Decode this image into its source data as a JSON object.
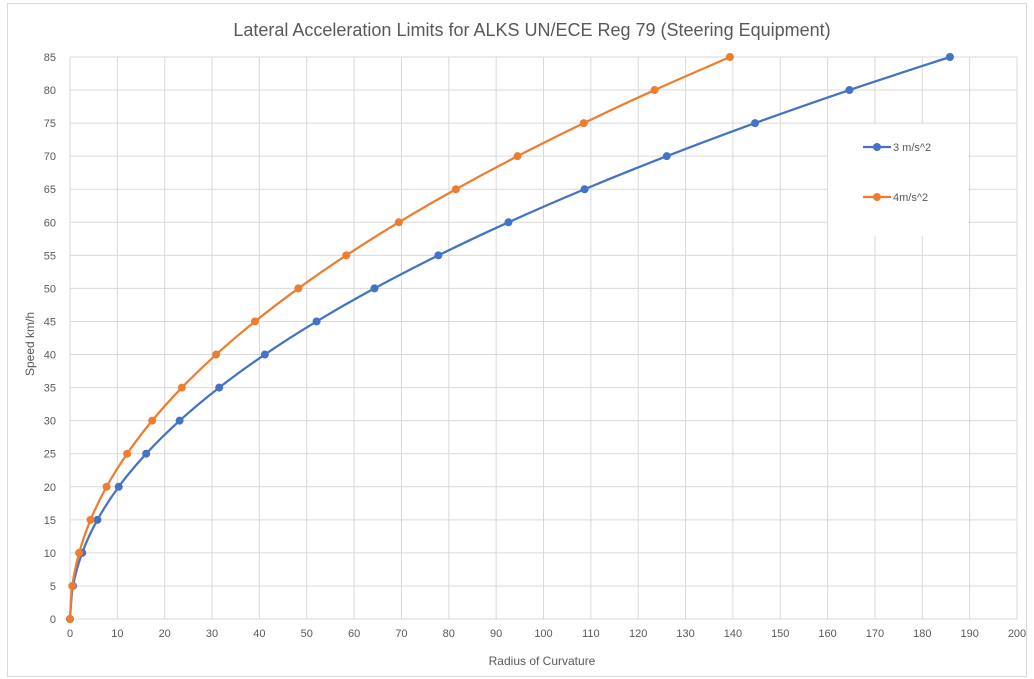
{
  "chart_data": {
    "type": "scatter",
    "title": "Lateral Acceleration Limits for ALKS UN/ECE Reg 79 (Steering Equipment)",
    "xlabel": "Radius of Curvature",
    "ylabel": "Speed km/h",
    "xlim": [
      0,
      200
    ],
    "ylim": [
      0,
      85
    ],
    "x_ticks": [
      "0",
      "10",
      "20",
      "30",
      "40",
      "50",
      "60",
      "70",
      "80",
      "90",
      "100",
      "110",
      "120",
      "130",
      "140",
      "150",
      "160",
      "170",
      "180",
      "190",
      "200"
    ],
    "y_ticks": [
      "0",
      "5",
      "10",
      "15",
      "20",
      "25",
      "30",
      "35",
      "40",
      "45",
      "50",
      "55",
      "60",
      "65",
      "70",
      "75",
      "80",
      "85"
    ],
    "grid": true,
    "legend_position": "right",
    "series": [
      {
        "name": "3 m/s^2",
        "color": "#4472c4",
        "x": [
          0,
          0.64,
          2.57,
          5.79,
          10.29,
          16.08,
          23.15,
          31.51,
          41.15,
          52.08,
          64.3,
          77.8,
          92.59,
          108.67,
          126.03,
          144.68,
          164.61,
          185.83
        ],
        "y": [
          0,
          5,
          10,
          15,
          20,
          25,
          30,
          35,
          40,
          45,
          50,
          55,
          60,
          65,
          70,
          75,
          80,
          85
        ]
      },
      {
        "name": "4m/s^2",
        "color": "#ed7d31",
        "x": [
          0,
          0.48,
          1.93,
          4.34,
          7.72,
          12.06,
          17.36,
          23.63,
          30.86,
          39.06,
          48.23,
          58.35,
          69.44,
          81.5,
          94.52,
          108.51,
          123.46,
          139.37
        ],
        "y": [
          0,
          5,
          10,
          15,
          20,
          25,
          30,
          35,
          40,
          45,
          50,
          55,
          60,
          65,
          70,
          75,
          80,
          85
        ]
      }
    ]
  }
}
